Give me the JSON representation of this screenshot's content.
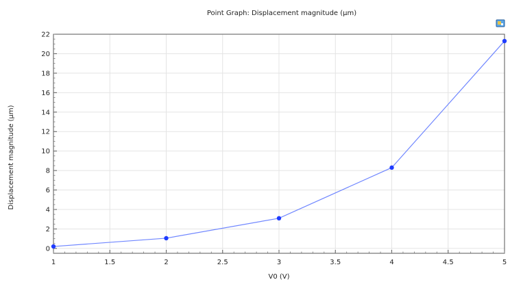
{
  "chart_data": {
    "type": "line",
    "title": "Point Graph: Displacement magnitude (µm)",
    "xlabel": "V0 (V)",
    "ylabel": "Displacement magnitude (µm)",
    "xlim": [
      1,
      5
    ],
    "ylim": [
      -0.5,
      22
    ],
    "x_ticks": [
      1,
      1.5,
      2,
      2.5,
      3,
      3.5,
      4,
      4.5,
      5
    ],
    "y_ticks": [
      0,
      2,
      4,
      6,
      8,
      10,
      12,
      14,
      16,
      18,
      20,
      22
    ],
    "grid": true,
    "series": [
      {
        "x": [
          1,
          2,
          3,
          4,
          5
        ],
        "values": [
          0.2,
          1.05,
          3.1,
          8.3,
          21.3
        ],
        "color": "#1f3cff"
      }
    ]
  },
  "toolbar": {
    "corner_icon": "image-export-icon"
  }
}
